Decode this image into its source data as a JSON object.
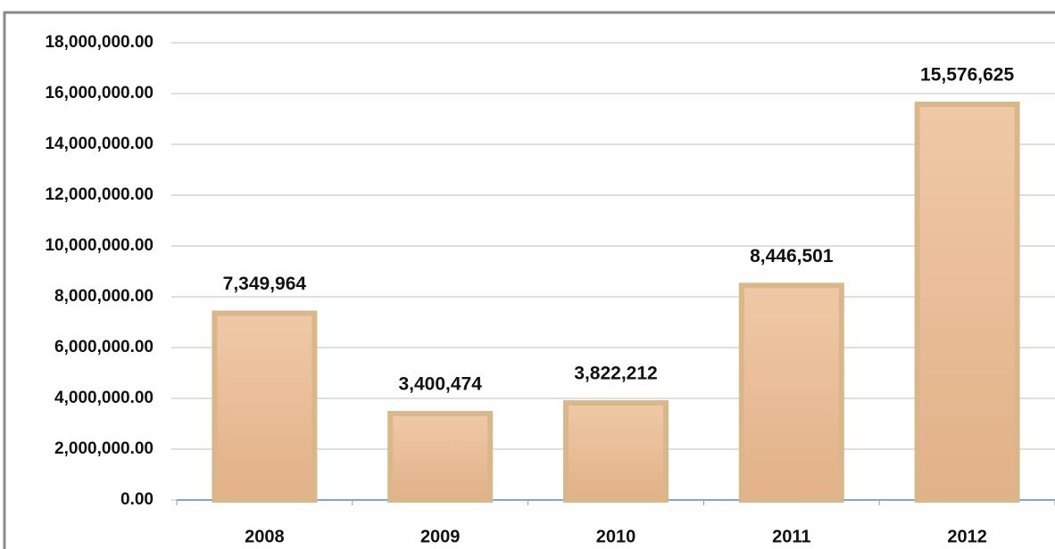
{
  "chart_data": {
    "type": "bar",
    "categories": [
      "2008",
      "2009",
      "2010",
      "2011",
      "2012"
    ],
    "values": [
      7349964,
      3400474,
      3822212,
      8446501,
      15576625
    ],
    "value_labels": [
      "7,349,964",
      "3,400,474",
      "3,822,212",
      "8,446,501",
      "15,576,625"
    ],
    "color": "#e9bd96",
    "ylim": [
      0,
      18000000
    ],
    "yticks": [
      {
        "value": 0,
        "label": "0.00"
      },
      {
        "value": 2000000,
        "label": "2,000,000.00"
      },
      {
        "value": 4000000,
        "label": "4,000,000.00"
      },
      {
        "value": 6000000,
        "label": "6,000,000.00"
      },
      {
        "value": 8000000,
        "label": "8,000,000.00"
      },
      {
        "value": 10000000,
        "label": "10,000,000.00"
      },
      {
        "value": 12000000,
        "label": "12,000,000.00"
      },
      {
        "value": 14000000,
        "label": "14,000,000.00"
      },
      {
        "value": 16000000,
        "label": "16,000,000.00"
      },
      {
        "value": 18000000,
        "label": "18,000,000.00"
      }
    ],
    "grid": true
  }
}
